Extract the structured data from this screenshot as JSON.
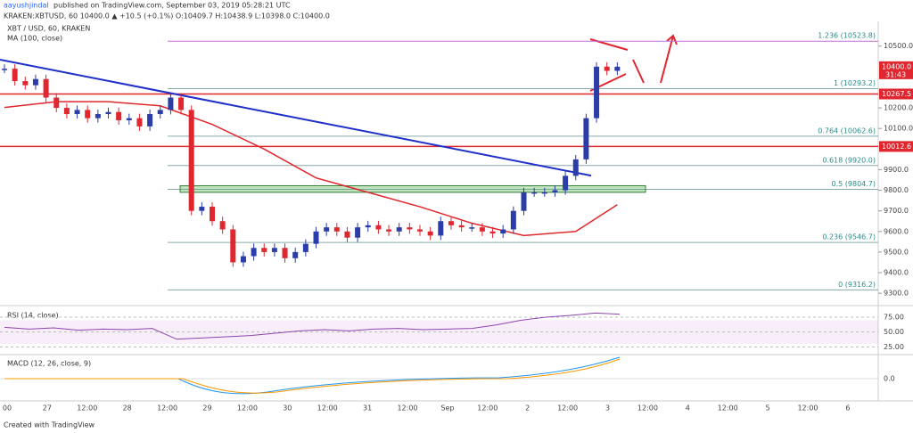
{
  "header": {
    "author": "aayushjindal",
    "published": "published on TradingView.com, September 03, 2019 05:28:21 UTC",
    "quote": "KRAKEN:XBTUSD, 60  10400.0 ▲ +10.5 (+0.1%)  O:10409.7 H:10438.9 L:10398.0 C:10400.0"
  },
  "footer": "Created with TradingView",
  "chart_data": {
    "type": "candlestick",
    "legend": "XBT / USD, 60, KRAKEN",
    "ma_label": "MA (100, close)",
    "close": [
      10390,
      10330,
      10310,
      10340,
      10250,
      10200,
      10170,
      10190,
      10150,
      10170,
      10180,
      10140,
      10150,
      10110,
      10170,
      10190,
      10250,
      10190,
      9700,
      9720,
      9650,
      9610,
      9450,
      9480,
      9520,
      9500,
      9520,
      9470,
      9500,
      9540,
      9600,
      9620,
      9600,
      9570,
      9620,
      9630,
      9610,
      9600,
      9620,
      9610,
      9600,
      9580,
      9650,
      9630,
      9620,
      9620,
      9600,
      9590,
      9610,
      9700,
      9790,
      9790,
      9790,
      9800,
      9870,
      9950,
      10150,
      10400,
      10380,
      10400
    ],
    "up_color": "#2b3da8",
    "down_color": "#e0262e",
    "ma": {
      "color": "#e0262e",
      "x": [
        0,
        5,
        10,
        15,
        20,
        25,
        30,
        35,
        40,
        45,
        50,
        55,
        59
      ],
      "values": [
        10202,
        10230,
        10230,
        10210,
        10120,
        10000,
        9860,
        9790,
        9720,
        9640,
        9580,
        9600,
        9730
      ]
    },
    "trendline": {
      "color": "#1f2fc9",
      "values": [
        10434,
        9871
      ]
    },
    "fib": [
      {
        "value": 10523.8,
        "label": "1.236 (10523.8)"
      },
      {
        "value": 10293.2,
        "label": "1 (10293.2)"
      },
      {
        "value": 10062.6,
        "label": "0.764 (10062.6)"
      },
      {
        "value": 9920.0,
        "label": "0.618 (9920.0)"
      },
      {
        "value": 9804.7,
        "label": "0.5 (9804.7)"
      },
      {
        "value": 9546.7,
        "label": "0.236 (9546.7)"
      },
      {
        "value": 9316.2,
        "label": "0 (9316.2)"
      }
    ],
    "price_tags": [
      {
        "value": 10400,
        "label": "10400.0",
        "sub": "31:43",
        "color": "#e0262e"
      },
      {
        "value": 10267.5,
        "label": "10267.5",
        "color": "#e0262e"
      },
      {
        "value": 10012.6,
        "label": "10012.6",
        "color": "#e0262e"
      }
    ],
    "ylim": [
      9240,
      10620
    ],
    "yticks": [
      {
        "value": 10500,
        "label": "10500.0"
      },
      {
        "value": 10200,
        "label": "10200.0"
      },
      {
        "value": 10100,
        "label": "10100.0"
      },
      {
        "value": 9900,
        "label": "9900.0"
      },
      {
        "value": 9800,
        "label": "9800.0"
      },
      {
        "value": 9700,
        "label": "9700.0"
      },
      {
        "value": 9600,
        "label": "9600.0"
      },
      {
        "value": 9500,
        "label": "9500.0"
      },
      {
        "value": 9400,
        "label": "9400.0"
      },
      {
        "value": 9300,
        "label": "9300.0"
      }
    ],
    "x_labels": [
      "00",
      "27",
      "12:00",
      "28",
      "12:00",
      "29",
      "12:00",
      "30",
      "12:00",
      "31",
      "12:00",
      "Sep",
      "12:00",
      "2",
      "12:00",
      "3",
      "12:00",
      "4",
      "12:00",
      "5",
      "12:00",
      "6"
    ],
    "rsi": {
      "label": "RSI (14, close)",
      "values": [
        58,
        55,
        57,
        53,
        55,
        54,
        56,
        38,
        40,
        42,
        44,
        48,
        52,
        54,
        52,
        55,
        56,
        54,
        55,
        56,
        62,
        70,
        75,
        78,
        82,
        80
      ],
      "ylim": [
        15,
        90
      ],
      "yticks": [
        {
          "value": 75,
          "label": "75.00"
        },
        {
          "value": 50,
          "label": "50.00"
        },
        {
          "value": 25,
          "label": "25.00"
        }
      ]
    },
    "macd": {
      "label": "MACD (12, 26, close, 9)",
      "ylim": [
        -15,
        15
      ],
      "yticks": [
        {
          "value": 0,
          "label": "0.0"
        }
      ]
    }
  }
}
